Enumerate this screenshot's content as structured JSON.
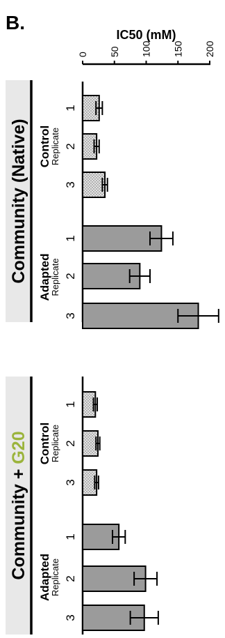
{
  "chart_data": {
    "type": "bar",
    "orientation": "horizontal",
    "panel_label": "B.",
    "xlabel": "IC50 (mM)",
    "xlim": [
      0,
      200
    ],
    "xticks": [
      0,
      50,
      100,
      150,
      200
    ],
    "colors": {
      "control_fill": "#dedede",
      "adapted_fill": "#9b9b9b",
      "band_fill": "#e8e8e8",
      "g20_accent": "#9bb43c"
    },
    "panels": [
      {
        "title": "Community (Native)",
        "title_parts": [
          {
            "text": "Community (Native)",
            "highlight": false
          }
        ],
        "groups": [
          {
            "name": "Control",
            "subtitle": "Replicate",
            "categories": [
              "1",
              "2",
              "3"
            ],
            "values": [
              26,
              22,
              35
            ],
            "errors": [
              5,
              4,
              4
            ]
          },
          {
            "name": "Adapted",
            "subtitle": "Replicate",
            "categories": [
              "1",
              "2",
              "3"
            ],
            "values": [
              124,
              90,
              182
            ],
            "errors": [
              18,
              16,
              32
            ]
          }
        ]
      },
      {
        "title": "Community + G20",
        "title_parts": [
          {
            "text": "Community + ",
            "highlight": false
          },
          {
            "text": "G20",
            "highlight": true
          }
        ],
        "groups": [
          {
            "name": "Control",
            "subtitle": "Replicate",
            "categories": [
              "1",
              "2",
              "3"
            ],
            "values": [
              20,
              24,
              22
            ],
            "errors": [
              3,
              3,
              3
            ]
          },
          {
            "name": "Adapted",
            "subtitle": "Replicate",
            "categories": [
              "1",
              "2",
              "3"
            ],
            "values": [
              57,
              99,
              97
            ],
            "errors": [
              10,
              18,
              22
            ]
          }
        ]
      }
    ]
  }
}
